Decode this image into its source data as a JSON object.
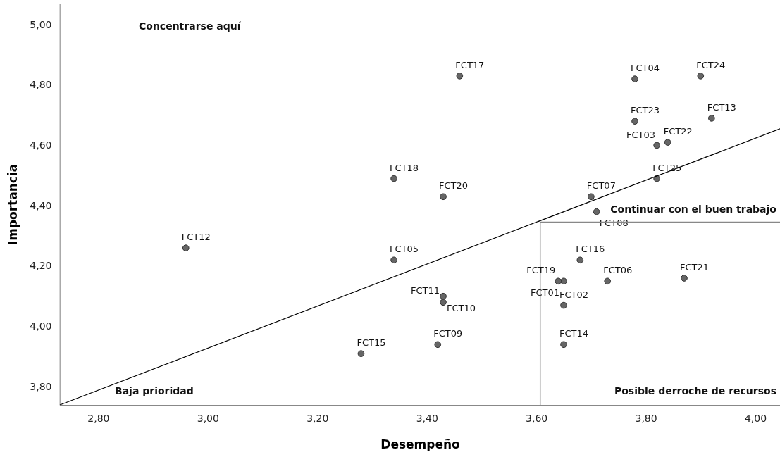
{
  "chart_data": {
    "type": "scatter",
    "xlabel": "Desempeño",
    "ylabel": "Importancia",
    "marker": "circle",
    "grid": false,
    "xlim": [
      2.73,
      4.045
    ],
    "ylim": [
      3.74,
      5.07
    ],
    "xticks": [
      {
        "value": 2.8,
        "label": "2,80"
      },
      {
        "value": 3.0,
        "label": "3,00"
      },
      {
        "value": 3.2,
        "label": "3,20"
      },
      {
        "value": 3.4,
        "label": "3,40"
      },
      {
        "value": 3.6,
        "label": "3,60"
      },
      {
        "value": 3.8,
        "label": "3,80"
      },
      {
        "value": 4.0,
        "label": "4,00"
      }
    ],
    "yticks": [
      {
        "value": 3.8,
        "label": "3,80"
      },
      {
        "value": 4.0,
        "label": "4,00"
      },
      {
        "value": 4.2,
        "label": "4,20"
      },
      {
        "value": 4.4,
        "label": "4,40"
      },
      {
        "value": 4.6,
        "label": "4,60"
      },
      {
        "value": 4.8,
        "label": "4,80"
      },
      {
        "value": 5.0,
        "label": "5,00"
      }
    ],
    "annotations": [
      "Concentrarse aquí",
      "Continuar con el buen trabajo",
      "Baja prioridad",
      "Posible derroche de recursos"
    ],
    "series": [
      {
        "name": "FCT01",
        "color": "#666666",
        "x": [
          3.65
        ],
        "values": [
          4.15
        ]
      },
      {
        "name": "FCT02",
        "color": "#666666",
        "x": [
          3.65
        ],
        "values": [
          4.07
        ]
      },
      {
        "name": "FCT03",
        "color": "#666666",
        "x": [
          3.82
        ],
        "values": [
          4.6
        ]
      },
      {
        "name": "FCT04",
        "color": "#666666",
        "x": [
          3.78
        ],
        "values": [
          4.82
        ]
      },
      {
        "name": "FCT05",
        "color": "#666666",
        "x": [
          3.34
        ],
        "values": [
          4.22
        ]
      },
      {
        "name": "FCT06",
        "color": "#666666",
        "x": [
          3.73
        ],
        "values": [
          4.15
        ]
      },
      {
        "name": "FCT07",
        "color": "#666666",
        "x": [
          3.7
        ],
        "values": [
          4.43
        ]
      },
      {
        "name": "FCT08",
        "color": "#666666",
        "x": [
          3.71
        ],
        "values": [
          4.38
        ]
      },
      {
        "name": "FCT09",
        "color": "#666666",
        "x": [
          3.42
        ],
        "values": [
          3.94
        ]
      },
      {
        "name": "FCT10",
        "color": "#666666",
        "x": [
          3.43
        ],
        "values": [
          4.08
        ]
      },
      {
        "name": "FCT11",
        "color": "#666666",
        "x": [
          3.43
        ],
        "values": [
          4.1
        ]
      },
      {
        "name": "FCT12",
        "color": "#666666",
        "x": [
          2.96
        ],
        "values": [
          4.26
        ]
      },
      {
        "name": "FCT13",
        "color": "#666666",
        "x": [
          3.92
        ],
        "values": [
          4.69
        ]
      },
      {
        "name": "FCT14",
        "color": "#666666",
        "x": [
          3.65
        ],
        "values": [
          3.94
        ]
      },
      {
        "name": "FCT15",
        "color": "#666666",
        "x": [
          3.28
        ],
        "values": [
          3.91
        ]
      },
      {
        "name": "FCT16",
        "color": "#666666",
        "x": [
          3.68
        ],
        "values": [
          4.22
        ]
      },
      {
        "name": "FCT17",
        "color": "#666666",
        "x": [
          3.46
        ],
        "values": [
          4.83
        ]
      },
      {
        "name": "FCT18",
        "color": "#666666",
        "x": [
          3.34
        ],
        "values": [
          4.49
        ]
      },
      {
        "name": "FCT19",
        "color": "#666666",
        "x": [
          3.64
        ],
        "values": [
          4.15
        ]
      },
      {
        "name": "FCT20",
        "color": "#666666",
        "x": [
          3.43
        ],
        "values": [
          4.43
        ]
      },
      {
        "name": "FCT21",
        "color": "#666666",
        "x": [
          3.87
        ],
        "values": [
          4.16
        ]
      },
      {
        "name": "FCT22",
        "color": "#666666",
        "x": [
          3.84
        ],
        "values": [
          4.61
        ]
      },
      {
        "name": "FCT23",
        "color": "#666666",
        "x": [
          3.78
        ],
        "values": [
          4.68
        ]
      },
      {
        "name": "FCT24",
        "color": "#666666",
        "x": [
          3.9
        ],
        "values": [
          4.83
        ]
      },
      {
        "name": "FCT25",
        "color": "#666666",
        "x": [
          3.82
        ],
        "values": [
          4.49
        ]
      },
      {
        "type": "line",
        "color": "#000000",
        "marker": "none",
        "x": [
          2.73,
          4.045
        ],
        "values": [
          3.74,
          4.655
        ]
      },
      {
        "type": "line",
        "color": "#000000",
        "marker": "none",
        "x": [
          3.607,
          3.607
        ],
        "values": [
          3.74,
          4.346
        ]
      },
      {
        "type": "line",
        "color": "#888888",
        "marker": "none",
        "x": [
          3.607,
          4.045
        ],
        "values": [
          4.346,
          4.346
        ]
      }
    ]
  }
}
